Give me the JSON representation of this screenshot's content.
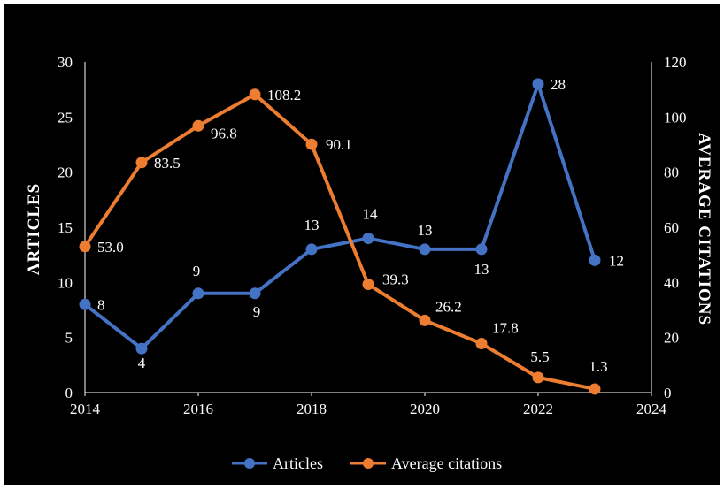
{
  "chart_data": {
    "type": "line",
    "x": [
      2014,
      2015,
      2016,
      2017,
      2018,
      2019,
      2020,
      2021,
      2022,
      2023
    ],
    "xlim": [
      2014,
      2024
    ],
    "xticks": [
      "2014",
      "2016",
      "2018",
      "2020",
      "2022",
      "2024"
    ],
    "xticks_values": [
      2014,
      2016,
      2018,
      2020,
      2022,
      2024
    ],
    "ylabel": "ARTICLES",
    "ylim": [
      0,
      30
    ],
    "yticks": [
      "0",
      "5",
      "10",
      "15",
      "20",
      "25",
      "30"
    ],
    "ylabel_right": "AVERAGE CITATIONS",
    "ylim_right": [
      0,
      120
    ],
    "yticks_right": [
      "0",
      "20",
      "40",
      "60",
      "80",
      "100",
      "120"
    ],
    "grid": false,
    "legend_position": "bottom",
    "series": [
      {
        "name": "Articles",
        "axis": "left",
        "color": "#4472C4",
        "values": [
          8,
          4,
          9,
          9,
          13,
          14,
          13,
          13,
          28,
          12
        ],
        "labels": [
          "8",
          "4",
          "9",
          "9",
          "13",
          "14",
          "13",
          "13",
          "28",
          "12"
        ]
      },
      {
        "name": "Average citations",
        "axis": "right",
        "color": "#ED7D31",
        "values": [
          53.0,
          83.5,
          96.8,
          108.2,
          90.1,
          39.3,
          26.2,
          17.8,
          5.5,
          1.3
        ],
        "labels": [
          "53.0",
          "83.5",
          "96.8",
          "108.2",
          "90.1",
          "39.3",
          "26.2",
          "17.8",
          "5.5",
          "1.3"
        ]
      }
    ]
  }
}
